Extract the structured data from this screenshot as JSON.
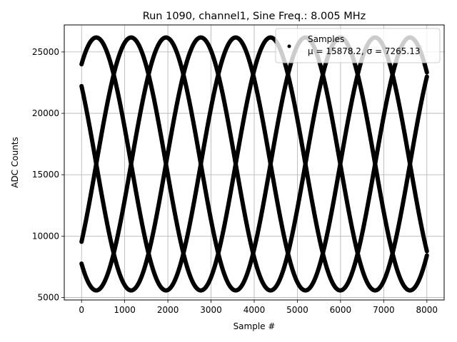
{
  "chart_data": {
    "type": "scatter",
    "title": "Run 1090, channel1, Sine Freq.: 8.005 MHz",
    "xlabel": "Sample #",
    "ylabel": "ADC Counts",
    "xlim": [
      -400,
      8400
    ],
    "ylim": [
      4800,
      27200
    ],
    "xticks": [
      0,
      1000,
      2000,
      3000,
      4000,
      5000,
      6000,
      7000,
      8000
    ],
    "xtick_labels": [
      "0",
      "1000",
      "2000",
      "3000",
      "4000",
      "5000",
      "6000",
      "7000",
      "8000"
    ],
    "yticks": [
      5000,
      10000,
      15000,
      20000,
      25000
    ],
    "ytick_labels": [
      "5000",
      "10000",
      "15000",
      "20000",
      "25000"
    ],
    "grid": true,
    "legend": {
      "placement": "top-right",
      "entries": [
        {
          "label": "Samples",
          "stats": "μ = 15878.2, σ = 7265.13"
        }
      ]
    },
    "series": [
      {
        "name": "Samples",
        "color": "#000000",
        "marker": "point",
        "sample_range": [
          0,
          8000
        ],
        "curves": [
          {
            "mean": 15878.2,
            "amplitude": 10300,
            "period": 3230,
            "phase_deg": 52
          },
          {
            "mean": 15878.2,
            "amplitude": 10300,
            "period": 3230,
            "phase_deg": 142
          },
          {
            "mean": 15878.2,
            "amplitude": 10300,
            "period": 3230,
            "phase_deg": 232
          },
          {
            "mean": 15878.2,
            "amplitude": 10300,
            "period": 3230,
            "phase_deg": 322
          }
        ]
      }
    ]
  }
}
